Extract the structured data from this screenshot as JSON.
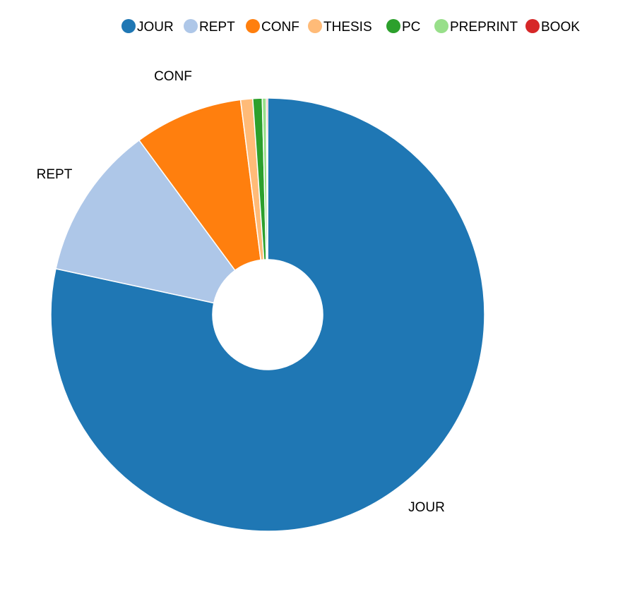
{
  "chart_data": {
    "type": "pie",
    "donut": true,
    "legend_position": "top",
    "slices": [
      {
        "label": "JOUR",
        "value": 78.4,
        "color": "#1f77b4",
        "show_label": true
      },
      {
        "label": "REPT",
        "value": 11.5,
        "color": "#aec7e8",
        "show_label": true
      },
      {
        "label": "CONF",
        "value": 8.1,
        "color": "#ff7f0e",
        "show_label": true
      },
      {
        "label": "THESIS",
        "value": 0.9,
        "color": "#ffbb78",
        "show_label": false
      },
      {
        "label": "PC",
        "value": 0.7,
        "color": "#2ca02c",
        "show_label": false
      },
      {
        "label": "PREPRINT",
        "value": 0.3,
        "color": "#98df8a",
        "show_label": false
      },
      {
        "label": "BOOK",
        "value": 0.1,
        "color": "#d62728",
        "show_label": false
      }
    ]
  }
}
